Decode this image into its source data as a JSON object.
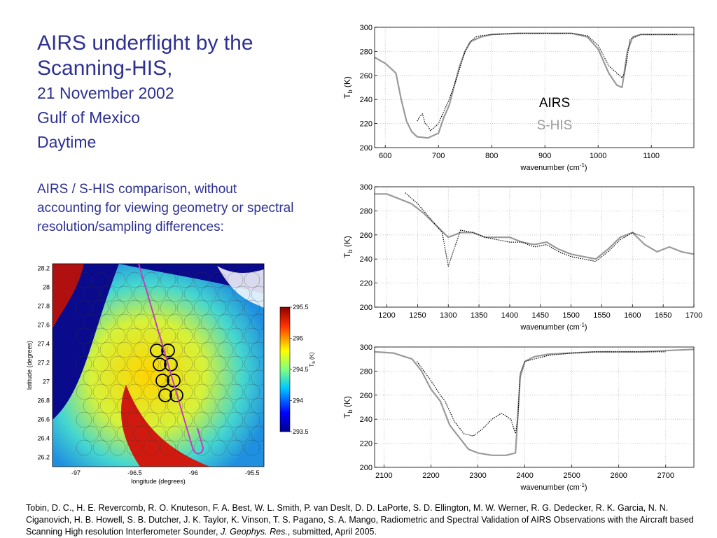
{
  "slide": {
    "title_line1": "AIRS underflight by the",
    "title_line2": "Scanning-HIS,",
    "date": "21 November 2002",
    "place": "Gulf of Mexico",
    "time_of_day": "Daytime",
    "comparison_note": "AIRS / S-HIS comparison, without accounting for viewing geometry or spectral resolution/sampling differences:"
  },
  "legend": {
    "airs": "AIRS",
    "shis": "S-HIS",
    "airs_color": "#000000",
    "shis_color": "#9a9a9a"
  },
  "citation": {
    "text_before": "Tobin, D. C., H. E. Revercomb, R. O. Knuteson, F. A. Best, W. L. Smith, P. van Deslt, D. D. LaPorte, S. D. Ellington, M. W. Werner, R. G. Dedecker, R. K. Garcia, N. N. Ciganovich, H. B. Howell, S. B. Dutcher, J. K. Taylor, K. Vinson, T. S. Pagano, S. A. Mango, Radiometric and Spectral Validation of AIRS Observations with the Aircraft based Scanning High resolution Interferometer Sounder, ",
    "journal": "J. Geophys. Res.",
    "text_after": ", submitted, April 2005."
  },
  "chart_data": [
    {
      "type": "line",
      "xlabel": "wavenumber (cm",
      "xlabel_sup": "-1",
      "xlabel_end": ")",
      "ylabel": "T",
      "ylabel_sub": "b",
      "ylabel_end": " (K)",
      "xlim": [
        580,
        1180
      ],
      "ylim": [
        200,
        300
      ],
      "xticks": [
        600,
        700,
        800,
        900,
        1000,
        1100
      ],
      "yticks": [
        200,
        220,
        240,
        260,
        280,
        300
      ],
      "series": [
        {
          "x": [
            580,
            600,
            620,
            630,
            640,
            650,
            660,
            680,
            700,
            710,
            720,
            730,
            740,
            750,
            760,
            780,
            800,
            850,
            900,
            950,
            980,
            1000,
            1020,
            1035,
            1045,
            1055,
            1065,
            1080,
            1100,
            1150,
            1180
          ],
          "y": [
            275,
            270,
            262,
            240,
            222,
            213,
            209,
            208,
            212,
            225,
            235,
            252,
            268,
            280,
            288,
            292,
            294,
            295,
            295,
            295,
            292,
            282,
            262,
            252,
            250,
            280,
            292,
            294,
            294,
            294,
            294
          ]
        },
        {
          "x": [
            660,
            665,
            670,
            675,
            680,
            685,
            690,
            700,
            710,
            720,
            730,
            740,
            750,
            760,
            770,
            780,
            800,
            850,
            900,
            950,
            980,
            1000,
            1020,
            1035,
            1045,
            1050,
            1060,
            1080,
            1100,
            1150
          ],
          "y": [
            222,
            226,
            228,
            220,
            218,
            214,
            216,
            220,
            230,
            240,
            252,
            266,
            280,
            288,
            292,
            293,
            294,
            295,
            295,
            295,
            293,
            285,
            268,
            262,
            258,
            262,
            290,
            294,
            294,
            294
          ]
        }
      ]
    },
    {
      "type": "line",
      "xlabel": "wavenumber (cm",
      "xlabel_sup": "-1",
      "xlabel_end": ")",
      "ylabel": "T",
      "ylabel_sub": "b",
      "ylabel_end": " (K)",
      "xlim": [
        1180,
        1700
      ],
      "ylim": [
        200,
        300
      ],
      "xticks": [
        1200,
        1250,
        1300,
        1350,
        1400,
        1450,
        1500,
        1550,
        1600,
        1650,
        1700
      ],
      "yticks": [
        200,
        220,
        240,
        260,
        280,
        300
      ],
      "series": [
        {
          "x": [
            1180,
            1200,
            1220,
            1240,
            1260,
            1280,
            1300,
            1320,
            1340,
            1360,
            1380,
            1400,
            1420,
            1440,
            1460,
            1480,
            1500,
            1520,
            1540,
            1560,
            1580,
            1600,
            1620,
            1640,
            1660,
            1680,
            1700
          ],
          "y": [
            294,
            294,
            290,
            286,
            278,
            268,
            258,
            262,
            262,
            258,
            258,
            258,
            254,
            252,
            254,
            248,
            244,
            242,
            240,
            248,
            258,
            262,
            252,
            246,
            250,
            246,
            244
          ]
        },
        {
          "x": [
            1230,
            1250,
            1270,
            1290,
            1300,
            1320,
            1340,
            1360,
            1380,
            1400,
            1420,
            1440,
            1460,
            1480,
            1500,
            1520,
            1540,
            1560,
            1580,
            1600,
            1620
          ],
          "y": [
            295,
            286,
            274,
            262,
            234,
            264,
            262,
            258,
            256,
            254,
            254,
            250,
            252,
            246,
            242,
            240,
            238,
            246,
            256,
            262,
            258
          ]
        }
      ]
    },
    {
      "type": "line",
      "xlabel": "wavenumber (cm",
      "xlabel_sup": "-1",
      "xlabel_end": ")",
      "ylabel": "T",
      "ylabel_sub": "b",
      "ylabel_end": " (K)",
      "xlim": [
        2080,
        2760
      ],
      "ylim": [
        200,
        300
      ],
      "xticks": [
        2100,
        2200,
        2300,
        2400,
        2500,
        2600,
        2700
      ],
      "yticks": [
        200,
        220,
        240,
        260,
        280,
        300
      ],
      "series": [
        {
          "x": [
            2080,
            2120,
            2160,
            2180,
            2200,
            2220,
            2240,
            2260,
            2270,
            2280,
            2300,
            2330,
            2360,
            2380,
            2390,
            2400,
            2420,
            2450,
            2500,
            2550,
            2600,
            2650,
            2700,
            2760
          ],
          "y": [
            296,
            295,
            290,
            280,
            265,
            255,
            235,
            225,
            220,
            215,
            212,
            210,
            210,
            212,
            275,
            288,
            292,
            294,
            295,
            296,
            296,
            296,
            297,
            298
          ]
        },
        {
          "x": [
            2170,
            2200,
            2220,
            2230,
            2250,
            2270,
            2290,
            2310,
            2330,
            2350,
            2370,
            2380,
            2385,
            2390,
            2400,
            2450,
            2500,
            2550,
            2600,
            2650,
            2700
          ],
          "y": [
            288,
            272,
            260,
            255,
            238,
            228,
            226,
            232,
            240,
            245,
            240,
            228,
            240,
            278,
            288,
            293,
            295,
            296,
            296,
            296,
            296
          ]
        }
      ]
    },
    {
      "type": "heatmap",
      "xlabel": "longitude (degrees)",
      "ylabel": "latitude (degrees)",
      "xlim": [
        -97.2,
        -95.4
      ],
      "ylim": [
        26.1,
        28.25
      ],
      "xticks": [
        -97,
        -96.5,
        -96,
        -95.5
      ],
      "yticks": [
        26.2,
        26.4,
        26.6,
        26.8,
        27,
        27.2,
        27.4,
        27.6,
        27.8,
        28,
        28.2
      ],
      "xtick_labels": [
        "-97",
        "-96.5",
        "-96",
        "-95.5"
      ],
      "ytick_labels": [
        "26.2",
        "26.4",
        "26.6",
        "26.8",
        "27",
        "27.2",
        "27.4",
        "27.6",
        "27.8",
        "28",
        "28.2"
      ],
      "colorbar": {
        "min": 293.5,
        "max": 295.5,
        "ticks": [
          "295.5",
          "295",
          "294.5",
          "294",
          "293.5"
        ],
        "label": "T",
        "label_sub": "b",
        "label_end": " (K)"
      }
    }
  ]
}
